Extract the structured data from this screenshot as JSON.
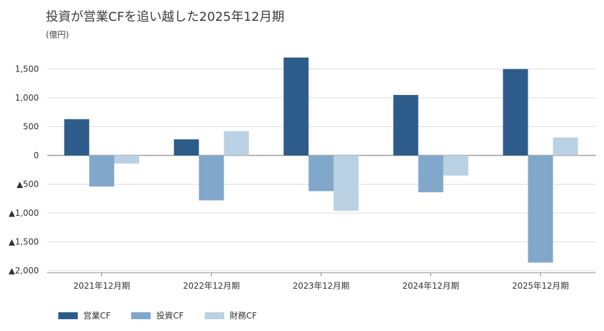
{
  "chart_data": {
    "type": "bar",
    "title": "投資が営業CFを追い越した2025年12月期",
    "unit_label": "(億円)",
    "categories": [
      "2021年12月期",
      "2022年12月期",
      "2023年12月期",
      "2024年12月期",
      "2025年12月期"
    ],
    "series": [
      {
        "name": "営業CF",
        "color": "#2e5c8a",
        "values": [
          630,
          280,
          1700,
          1050,
          1500
        ]
      },
      {
        "name": "投資CF",
        "color": "#81a7cb",
        "values": [
          -540,
          -780,
          -620,
          -640,
          -1860
        ]
      },
      {
        "name": "財務CF",
        "color": "#b9d1e3",
        "values": [
          -140,
          420,
          -960,
          -350,
          310
        ]
      }
    ],
    "ylim": [
      -2000,
      1800
    ],
    "yticks": [
      1500,
      1000,
      500,
      0,
      -500,
      -1000,
      -1500,
      -2000
    ],
    "ytick_labels": [
      "1,500",
      "1,000",
      "500",
      "0",
      "▲500",
      "▲1,000",
      "▲1,500",
      "▲2,000"
    ],
    "grid": true,
    "legend_position": "bottom-left"
  }
}
